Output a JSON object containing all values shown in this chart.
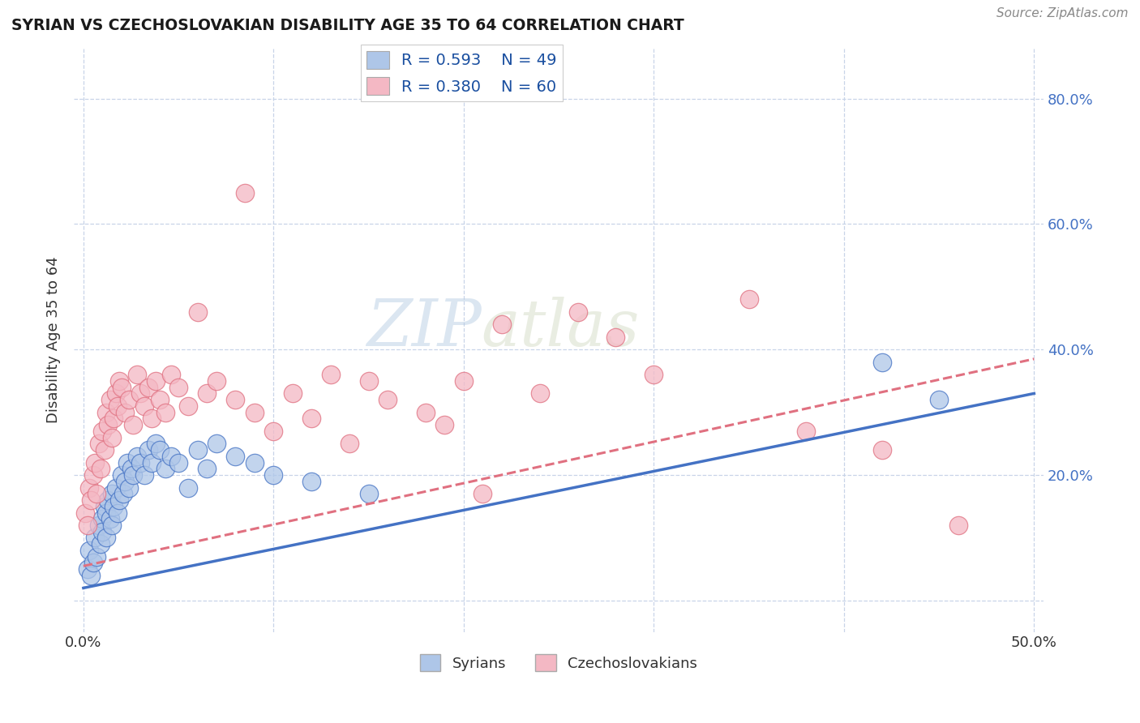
{
  "title": "SYRIAN VS CZECHOSLOVAKIAN DISABILITY AGE 35 TO 64 CORRELATION CHART",
  "source": "Source: ZipAtlas.com",
  "xlabel_ticks": [
    0.0,
    0.1,
    0.2,
    0.3,
    0.4,
    0.5
  ],
  "xlabel_labels": [
    "0.0%",
    "",
    "",
    "",
    "",
    "50.0%"
  ],
  "ylabel_ticks": [
    0.0,
    0.2,
    0.4,
    0.6,
    0.8
  ],
  "ylabel_right_labels": [
    "",
    "20.0%",
    "40.0%",
    "60.0%",
    "80.0%"
  ],
  "ylabel_label": "Disability Age 35 to 64",
  "xlim": [
    -0.005,
    0.505
  ],
  "ylim": [
    -0.05,
    0.88
  ],
  "legend_r1": "R = 0.593",
  "legend_n1": "N = 49",
  "legend_r2": "R = 0.380",
  "legend_n2": "N = 60",
  "syrians_color": "#aec6e8",
  "czechoslovakians_color": "#f4b8c4",
  "trendline_syrians_color": "#4472c4",
  "trendline_czechoslovakians_color": "#e07080",
  "watermark_zip": "ZIP",
  "watermark_atlas": "atlas",
  "background_color": "#ffffff",
  "grid_color": "#c8d4e8",
  "syrian_points_x": [
    0.002,
    0.003,
    0.004,
    0.005,
    0.006,
    0.007,
    0.008,
    0.009,
    0.01,
    0.01,
    0.011,
    0.012,
    0.012,
    0.013,
    0.014,
    0.015,
    0.015,
    0.016,
    0.017,
    0.018,
    0.019,
    0.02,
    0.021,
    0.022,
    0.023,
    0.024,
    0.025,
    0.026,
    0.028,
    0.03,
    0.032,
    0.034,
    0.036,
    0.038,
    0.04,
    0.043,
    0.046,
    0.05,
    0.055,
    0.06,
    0.065,
    0.07,
    0.08,
    0.09,
    0.1,
    0.12,
    0.15,
    0.42,
    0.45
  ],
  "syrian_points_y": [
    0.05,
    0.08,
    0.04,
    0.06,
    0.1,
    0.07,
    0.12,
    0.09,
    0.13,
    0.11,
    0.15,
    0.14,
    0.1,
    0.16,
    0.13,
    0.17,
    0.12,
    0.15,
    0.18,
    0.14,
    0.16,
    0.2,
    0.17,
    0.19,
    0.22,
    0.18,
    0.21,
    0.2,
    0.23,
    0.22,
    0.2,
    0.24,
    0.22,
    0.25,
    0.24,
    0.21,
    0.23,
    0.22,
    0.18,
    0.24,
    0.21,
    0.25,
    0.23,
    0.22,
    0.2,
    0.19,
    0.17,
    0.38,
    0.32
  ],
  "czechoslovakian_points_x": [
    0.001,
    0.002,
    0.003,
    0.004,
    0.005,
    0.006,
    0.007,
    0.008,
    0.009,
    0.01,
    0.011,
    0.012,
    0.013,
    0.014,
    0.015,
    0.016,
    0.017,
    0.018,
    0.019,
    0.02,
    0.022,
    0.024,
    0.026,
    0.028,
    0.03,
    0.032,
    0.034,
    0.036,
    0.038,
    0.04,
    0.043,
    0.046,
    0.05,
    0.055,
    0.06,
    0.065,
    0.07,
    0.08,
    0.085,
    0.09,
    0.1,
    0.11,
    0.12,
    0.13,
    0.14,
    0.15,
    0.16,
    0.18,
    0.19,
    0.2,
    0.21,
    0.22,
    0.24,
    0.26,
    0.28,
    0.3,
    0.35,
    0.38,
    0.42,
    0.46
  ],
  "czechoslovakian_points_y": [
    0.14,
    0.12,
    0.18,
    0.16,
    0.2,
    0.22,
    0.17,
    0.25,
    0.21,
    0.27,
    0.24,
    0.3,
    0.28,
    0.32,
    0.26,
    0.29,
    0.33,
    0.31,
    0.35,
    0.34,
    0.3,
    0.32,
    0.28,
    0.36,
    0.33,
    0.31,
    0.34,
    0.29,
    0.35,
    0.32,
    0.3,
    0.36,
    0.34,
    0.31,
    0.46,
    0.33,
    0.35,
    0.32,
    0.65,
    0.3,
    0.27,
    0.33,
    0.29,
    0.36,
    0.25,
    0.35,
    0.32,
    0.3,
    0.28,
    0.35,
    0.17,
    0.44,
    0.33,
    0.46,
    0.42,
    0.36,
    0.48,
    0.27,
    0.24,
    0.12
  ],
  "syrian_trendline_x0": 0.0,
  "syrian_trendline_y0": 0.02,
  "syrian_trendline_x1": 0.5,
  "syrian_trendline_y1": 0.33,
  "czecho_trendline_x0": 0.0,
  "czecho_trendline_y0": 0.055,
  "czecho_trendline_x1": 0.5,
  "czecho_trendline_y1": 0.385
}
